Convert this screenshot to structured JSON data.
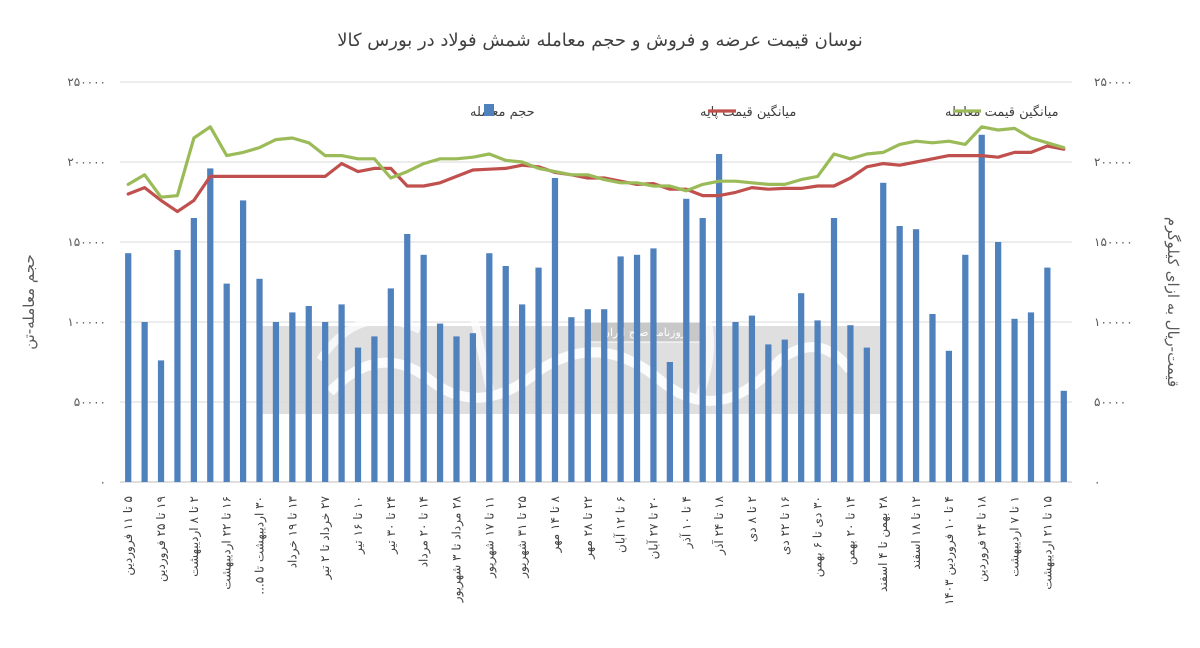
{
  "chart_data": {
    "type": "bar",
    "title": "نوسان قیمت عرضه و فروش و حجم معامله شمش فولاد در بورس کالا",
    "ylabel_left": "حجم معامله-تن",
    "ylabel_right": "قیمت-ریال به ازای کیلوگرم",
    "ylim_left": [
      0,
      250000
    ],
    "ylim_right": [
      0,
      250000
    ],
    "yticks_left": [
      "۰",
      "۵۰۰۰۰",
      "۱۰۰۰۰۰",
      "۱۵۰۰۰۰",
      "۲۰۰۰۰۰",
      "۲۵۰۰۰۰"
    ],
    "yticks_right": [
      "۰",
      "۵۰۰۰۰",
      "۱۰۰۰۰۰",
      "۱۵۰۰۰۰",
      "۲۰۰۰۰۰",
      "۲۵۰۰۰۰"
    ],
    "legend_position": "top",
    "grid": true,
    "categories": [
      "۵ تا ۱۱ فروردین",
      "",
      "۱۹ تا ۲۵ فروردین",
      "",
      "۲ تا ۸ اردیبهشت",
      "",
      "۱۶ تا ۲۲ اردیبهشت",
      "",
      "۳۰ اردیبهشت تا ۵...",
      "",
      "۱۳ تا ۱۹ خرداد",
      "",
      "۲۷ خرداد تا ۲ تیر",
      "",
      "۱۰ تا ۱۶ تیر",
      "",
      "۲۴ تا ۳۰ تیر",
      "",
      "۱۴ تا ۲۰ مرداد",
      "",
      "۲۸ مرداد تا ۳ شهریور",
      "",
      "۱۱ تا ۱۷ شهریور",
      "",
      "۲۵ تا ۳۱ شهریور",
      "",
      "۸ تا ۱۴ مهر",
      "",
      "۲۲ تا ۲۸ مهر",
      "",
      "۶ تا ۱۲ آبان",
      "",
      "۲۰ تا ۲۷ آبان",
      "",
      "۴ تا ۱۰ آذر",
      "",
      "۱۸ تا ۲۴ آذر",
      "",
      "۲ تا ۸ دی",
      "",
      "۱۶ تا ۲۲ دی",
      "",
      "۳۰ دی تا ۶ بهمن",
      "",
      "۱۴ تا ۲۰ بهمن",
      "",
      "۲۸ بهمن تا ۴ اسفند",
      "",
      "۱۲ تا ۱۸ اسفند",
      "",
      "۴ تا ۱۰ فروردین ۱۴۰۳",
      "",
      "۱۸ تا ۲۴ فروردین",
      "",
      "۱ تا ۷ اردیبهشت",
      "",
      "۱۵ تا ۲۱ اردیبهشت",
      ""
    ],
    "series": [
      {
        "name": "حجم معامله",
        "type": "bar",
        "axis": "left",
        "color": "#4F81BD",
        "values": [
          143000,
          100000,
          76000,
          145000,
          165000,
          196000,
          124000,
          176000,
          127000,
          100000,
          106000,
          110000,
          100000,
          111000,
          84000,
          91000,
          121000,
          155000,
          142000,
          99000,
          91000,
          93000,
          143000,
          135000,
          111000,
          134000,
          190000,
          103000,
          108000,
          108000,
          141000,
          142000,
          146000,
          75000,
          177000,
          165000,
          205000,
          100000,
          104000,
          86000,
          89000,
          118000,
          101000,
          165000,
          98000,
          84000,
          187000,
          160000,
          158000,
          105000,
          82000,
          142000,
          217000,
          150000,
          102000,
          106000,
          134000,
          57000
        ]
      },
      {
        "name": "میانگین قیمت پایه",
        "type": "line",
        "axis": "right",
        "color": "#C0504D",
        "values": [
          180000,
          184000,
          176000,
          169000,
          176000,
          191000,
          191000,
          191000,
          191000,
          191000,
          191000,
          191000,
          191000,
          199000,
          194000,
          196000,
          196000,
          185000,
          185000,
          187000,
          191000,
          195000,
          195500,
          196000,
          198000,
          197000,
          193500,
          192000,
          190000,
          190000,
          188000,
          186000,
          186500,
          183000,
          183000,
          179000,
          179000,
          181000,
          184000,
          183000,
          183500,
          183500,
          185000,
          185000,
          190000,
          197000,
          199000,
          198000,
          200000,
          202000,
          204000,
          204000,
          204000,
          203000,
          206000,
          206000,
          210000,
          208000
        ]
      },
      {
        "name": "میانگین قیمت معامله",
        "type": "line",
        "axis": "right",
        "color": "#9BBB59",
        "values": [
          186000,
          192000,
          178000,
          179000,
          215000,
          222000,
          204000,
          206000,
          209000,
          214000,
          215000,
          212000,
          204000,
          204000,
          202000,
          202000,
          190000,
          194000,
          199000,
          202000,
          202000,
          203000,
          205000,
          201000,
          200000,
          196000,
          194000,
          192000,
          192000,
          189000,
          187000,
          187000,
          185000,
          185000,
          182000,
          186000,
          188000,
          188000,
          187000,
          186000,
          186000,
          189000,
          191000,
          205000,
          202000,
          205000,
          206000,
          211000,
          213000,
          212000,
          213000,
          211000,
          222000,
          220000,
          221000,
          215000,
          212000,
          209000
        ]
      }
    ]
  },
  "watermark": {
    "caption": "روزنامه صبح ایران"
  }
}
